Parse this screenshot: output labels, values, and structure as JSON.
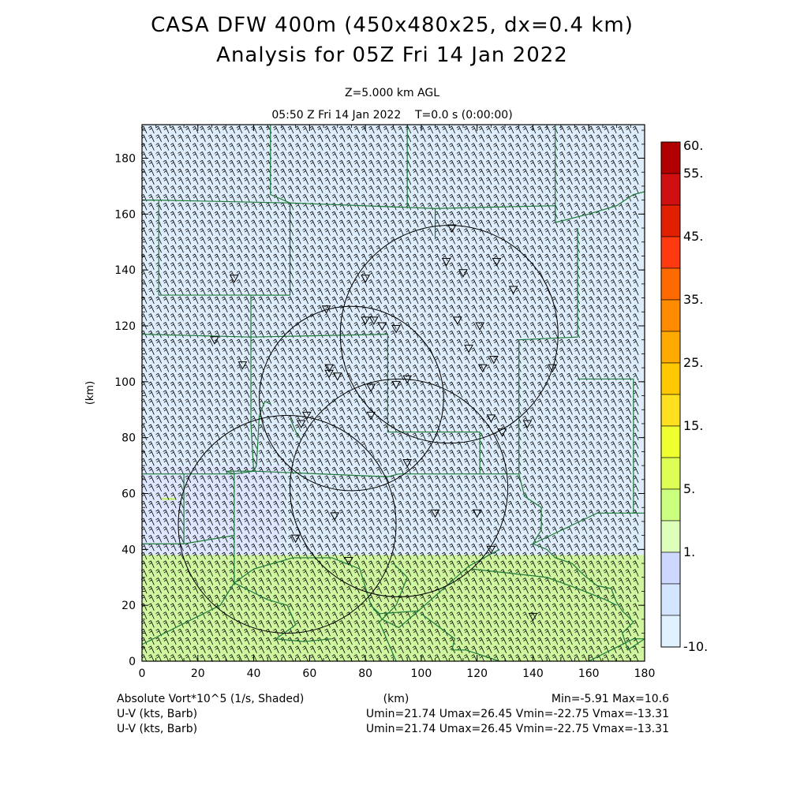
{
  "header": {
    "title_line1": "CASA DFW 400m (450x480x25, dx=0.4 km)",
    "title_line2": "Analysis for 05Z Fri 14 Jan 2022",
    "level": "Z=5.000 km AGL",
    "time": "05:50 Z Fri 14 Jan 2022    T=0.0 s (0:00:00)"
  },
  "footer": {
    "field_label": "Absolute Vort*10^5 (1/s, Shaded)",
    "x_unit": "(km)",
    "minmax": "Min=-5.91 Max=10.6",
    "barb_label_1": "U-V (kts, Barb)",
    "barb_stats_1": "Umin=21.74 Umax=26.45 Vmin=-22.75 Vmax=-13.31",
    "barb_label_2": "U-V (kts, Barb)",
    "barb_stats_2": "Umin=21.74 Umax=26.45 Vmin=-22.75 Vmax=-13.31"
  },
  "colors": {
    "frame": "#000000",
    "county_lines": "#1f7a3a",
    "barbs": "#000000",
    "radar_rings": "#000000"
  },
  "chart_data": {
    "type": "heatmap",
    "title": "CASA DFW 400m (450x480x25, dx=0.4 km)",
    "subtitle": "Analysis for 05Z Fri 14 Jan 2022",
    "xlabel": "(km)",
    "ylabel": "(km)",
    "xlim": [
      0,
      180
    ],
    "ylim": [
      0,
      192
    ],
    "x_ticks": [
      "0",
      "20",
      "40",
      "60",
      "80",
      "100",
      "120",
      "140",
      "160",
      "180"
    ],
    "y_ticks": [
      "0",
      "20",
      "40",
      "60",
      "80",
      "100",
      "120",
      "140",
      "160",
      "180"
    ],
    "colorbar": {
      "labels": [
        "60.",
        "55.",
        "45.",
        "35.",
        "25.",
        "15.",
        "5.",
        "1.",
        "-10."
      ],
      "colors": [
        "#b00000",
        "#d01010",
        "#e02000",
        "#ff3a10",
        "#ff6a00",
        "#ff8c00",
        "#ffaa00",
        "#ffc800",
        "#ffe020",
        "#f0ff30",
        "#ddff55",
        "#ccff80",
        "#ddffbb",
        "#ccd8ff",
        "#d4e6ff",
        "#e0f2ff"
      ]
    },
    "shaded_regions": [
      {
        "name": "vorticity > 5 band",
        "x": [
          0,
          180
        ],
        "y": [
          0,
          38
        ],
        "color": "#ccf59a"
      },
      {
        "name": "weak vorticity 1-5",
        "x": [
          0,
          50
        ],
        "y": [
          38,
          70
        ],
        "color": "#dde7ff"
      },
      {
        "name": "background -10 to 1",
        "x": [
          0,
          180
        ],
        "y": [
          38,
          192
        ],
        "color": "#dcecfb"
      }
    ],
    "radar_rings": [
      {
        "x": 110,
        "y": 117,
        "r": 39
      },
      {
        "x": 75,
        "y": 94,
        "r": 33
      },
      {
        "x": 92,
        "y": 62,
        "r": 39
      },
      {
        "x": 52,
        "y": 49,
        "r": 39
      }
    ],
    "station_markers": [
      [
        33,
        137
      ],
      [
        26,
        115
      ],
      [
        36,
        106
      ],
      [
        59,
        88
      ],
      [
        57,
        85
      ],
      [
        55,
        44
      ],
      [
        66,
        126
      ],
      [
        67,
        105
      ],
      [
        67,
        103
      ],
      [
        70,
        102
      ],
      [
        80,
        137
      ],
      [
        80,
        122
      ],
      [
        83,
        122
      ],
      [
        86,
        120
      ],
      [
        91,
        119
      ],
      [
        82,
        98
      ],
      [
        91,
        99
      ],
      [
        95,
        101
      ],
      [
        82,
        88
      ],
      [
        95,
        71
      ],
      [
        69,
        52
      ],
      [
        74,
        36
      ],
      [
        105,
        53
      ],
      [
        109,
        143
      ],
      [
        111,
        155
      ],
      [
        113,
        122
      ],
      [
        115,
        139
      ],
      [
        117,
        112
      ],
      [
        121,
        120
      ],
      [
        127,
        143
      ],
      [
        122,
        105
      ],
      [
        125,
        87
      ],
      [
        133,
        133
      ],
      [
        126,
        108
      ],
      [
        129,
        82
      ],
      [
        138,
        85
      ],
      [
        147,
        105
      ],
      [
        120,
        53
      ],
      [
        125,
        40
      ],
      [
        140,
        16
      ]
    ],
    "wind_barbs": {
      "u_range": [
        21.74,
        26.45
      ],
      "v_range": [
        -22.75,
        -13.31
      ],
      "units": "kts"
    },
    "vorticity_min": -5.91,
    "vorticity_max": 10.6
  }
}
